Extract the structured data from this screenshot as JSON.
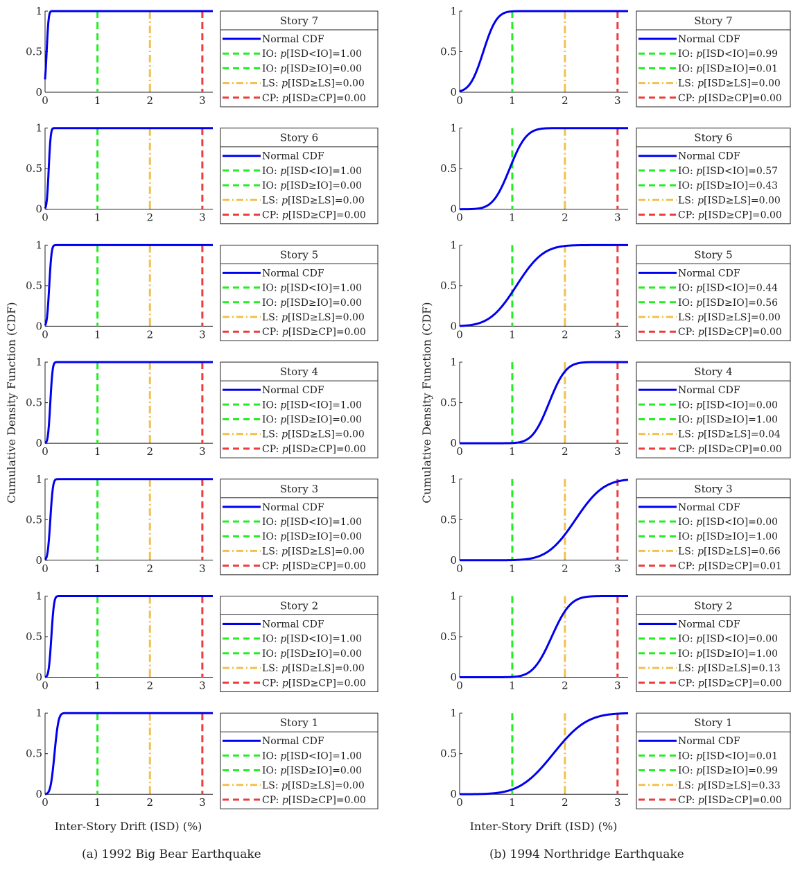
{
  "figure": {
    "ylabel": "Cumulative Density Function (CDF)",
    "xlabel": "Inter-Story Drift (ISD) (%)"
  },
  "colors": {
    "cdf": "#0000ee",
    "io": "#22ee22",
    "ls": "#f2c04e",
    "cp": "#ee3b3b"
  },
  "legend_labels": {
    "cdf": "Normal CDF",
    "io_lt": "IO: ",
    "io_ge": "IO: ",
    "ls": "LS: ",
    "cp": "CP: "
  },
  "chart_data": [
    {
      "type": "line",
      "caption": "(a) 1992 Big Bear Earthquake",
      "xlim": [
        0,
        3.2
      ],
      "ylim": [
        0,
        1
      ],
      "x_ticks": [
        "0",
        "1",
        "2",
        "3"
      ],
      "y_ticks": [
        "0",
        "0.5",
        "1"
      ],
      "vertical_lines": [
        {
          "name": "IO",
          "x": 1
        },
        {
          "name": "LS",
          "x": 2
        },
        {
          "name": "CP",
          "x": 3
        }
      ],
      "stories": [
        {
          "title": "Story 7",
          "mean": 0.03,
          "std": 0.03,
          "p_io_lt": "1.00",
          "p_io_ge": "0.00",
          "p_ls": "0.00",
          "p_cp": "0.00"
        },
        {
          "title": "Story 6",
          "mean": 0.07,
          "std": 0.03,
          "p_io_lt": "1.00",
          "p_io_ge": "0.00",
          "p_ls": "0.00",
          "p_cp": "0.00"
        },
        {
          "title": "Story 5",
          "mean": 0.08,
          "std": 0.035,
          "p_io_lt": "1.00",
          "p_io_ge": "0.00",
          "p_ls": "0.00",
          "p_cp": "0.00"
        },
        {
          "title": "Story 4",
          "mean": 0.1,
          "std": 0.035,
          "p_io_lt": "1.00",
          "p_io_ge": "0.00",
          "p_ls": "0.00",
          "p_cp": "0.00"
        },
        {
          "title": "Story 3",
          "mean": 0.1,
          "std": 0.04,
          "p_io_lt": "1.00",
          "p_io_ge": "0.00",
          "p_ls": "0.00",
          "p_cp": "0.00"
        },
        {
          "title": "Story 2",
          "mean": 0.12,
          "std": 0.04,
          "p_io_lt": "1.00",
          "p_io_ge": "0.00",
          "p_ls": "0.00",
          "p_cp": "0.00"
        },
        {
          "title": "Story 1",
          "mean": 0.18,
          "std": 0.06,
          "p_io_lt": "1.00",
          "p_io_ge": "0.00",
          "p_ls": "0.00",
          "p_cp": "0.00"
        }
      ]
    },
    {
      "type": "line",
      "caption": "(b) 1994 Northridge Earthquake",
      "xlim": [
        0,
        3.2
      ],
      "ylim": [
        0,
        1
      ],
      "x_ticks": [
        "0",
        "1",
        "2",
        "3"
      ],
      "y_ticks": [
        "0",
        "0.5",
        "1"
      ],
      "vertical_lines": [
        {
          "name": "IO",
          "x": 1
        },
        {
          "name": "LS",
          "x": 2
        },
        {
          "name": "CP",
          "x": 3
        }
      ],
      "stories": [
        {
          "title": "Story 7",
          "mean": 0.45,
          "std": 0.2,
          "p_io_lt": "0.99",
          "p_io_ge": "0.01",
          "p_ls": "0.00",
          "p_cp": "0.00"
        },
        {
          "title": "Story 6",
          "mean": 0.95,
          "std": 0.25,
          "p_io_lt": "0.57",
          "p_io_ge": "0.43",
          "p_ls": "0.00",
          "p_cp": "0.00"
        },
        {
          "title": "Story 5",
          "mean": 1.08,
          "std": 0.4,
          "p_io_lt": "0.44",
          "p_io_ge": "0.56",
          "p_ls": "0.00",
          "p_cp": "0.00"
        },
        {
          "title": "Story 4",
          "mean": 1.7,
          "std": 0.25,
          "p_io_lt": "0.00",
          "p_io_ge": "1.00",
          "p_ls": "0.04",
          "p_cp": "0.00"
        },
        {
          "title": "Story 3",
          "mean": 2.2,
          "std": 0.42,
          "p_io_lt": "0.00",
          "p_io_ge": "1.00",
          "p_ls": "0.66",
          "p_cp": "0.01"
        },
        {
          "title": "Story 2",
          "mean": 1.75,
          "std": 0.28,
          "p_io_lt": "0.00",
          "p_io_ge": "1.00",
          "p_ls": "0.13",
          "p_cp": "0.00"
        },
        {
          "title": "Story 1",
          "mean": 1.78,
          "std": 0.5,
          "p_io_lt": "0.01",
          "p_io_ge": "0.99",
          "p_ls": "0.33",
          "p_cp": "0.00"
        }
      ]
    }
  ]
}
